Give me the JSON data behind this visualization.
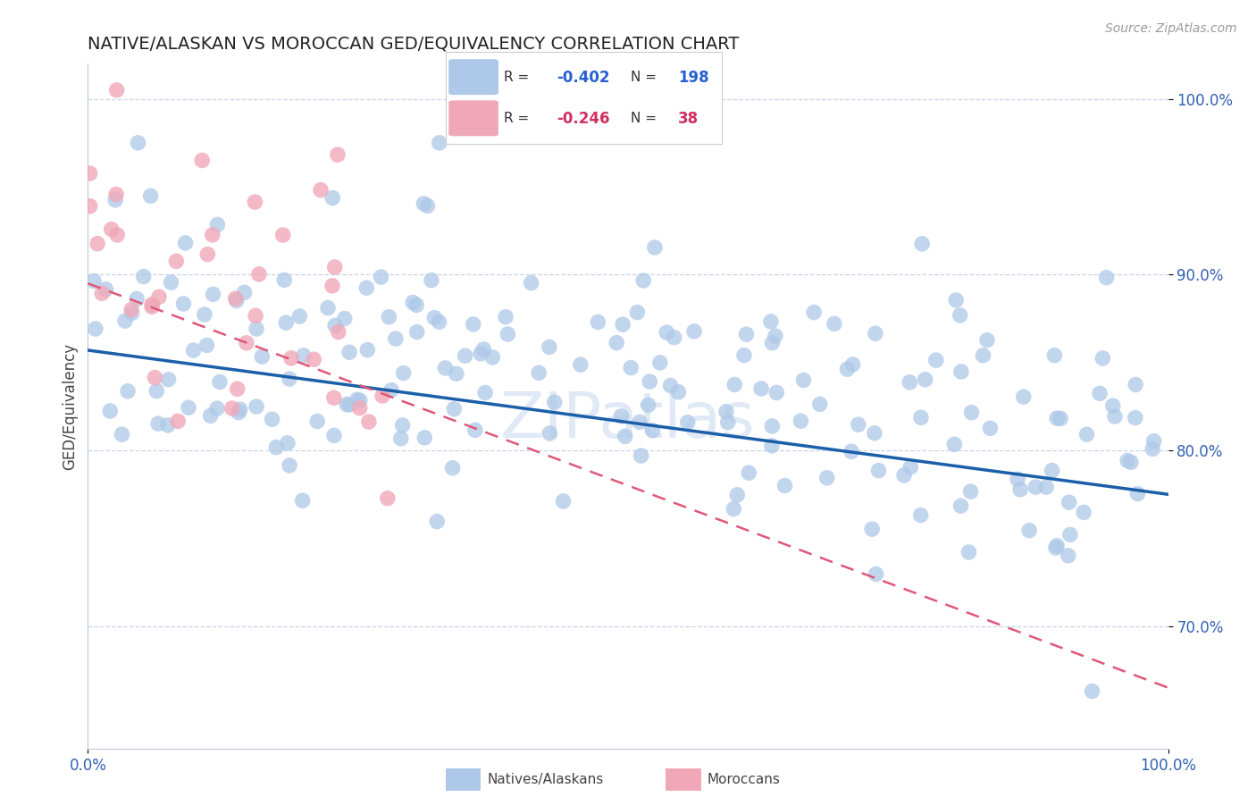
{
  "title": "NATIVE/ALASKAN VS MOROCCAN GED/EQUIVALENCY CORRELATION CHART",
  "source": "Source: ZipAtlas.com",
  "ylabel": "GED/Equivalency",
  "xlim": [
    0.0,
    1.0
  ],
  "ylim": [
    0.63,
    1.02
  ],
  "yticks": [
    0.7,
    0.8,
    0.9,
    1.0
  ],
  "ytick_labels": [
    "70.0%",
    "80.0%",
    "90.0%",
    "100.0%"
  ],
  "xtick_labels": [
    "0.0%",
    "100.0%"
  ],
  "blue_R": -0.402,
  "blue_N": 198,
  "pink_R": -0.246,
  "pink_N": 38,
  "blue_color": "#adc8e8",
  "pink_color": "#f0a8b8",
  "blue_line_color": "#1a5fa8",
  "pink_line_color": "#e05878",
  "legend_label_blue": "Natives/Alaskans",
  "legend_label_pink": "Moroccans",
  "title_fontsize": 14,
  "axis_label_fontsize": 12,
  "tick_fontsize": 12,
  "source_fontsize": 10,
  "background_color": "#ffffff",
  "grid_color": "#c8d4e8",
  "watermark": "ZIPatlas",
  "seed_blue": 42,
  "seed_pink": 99
}
